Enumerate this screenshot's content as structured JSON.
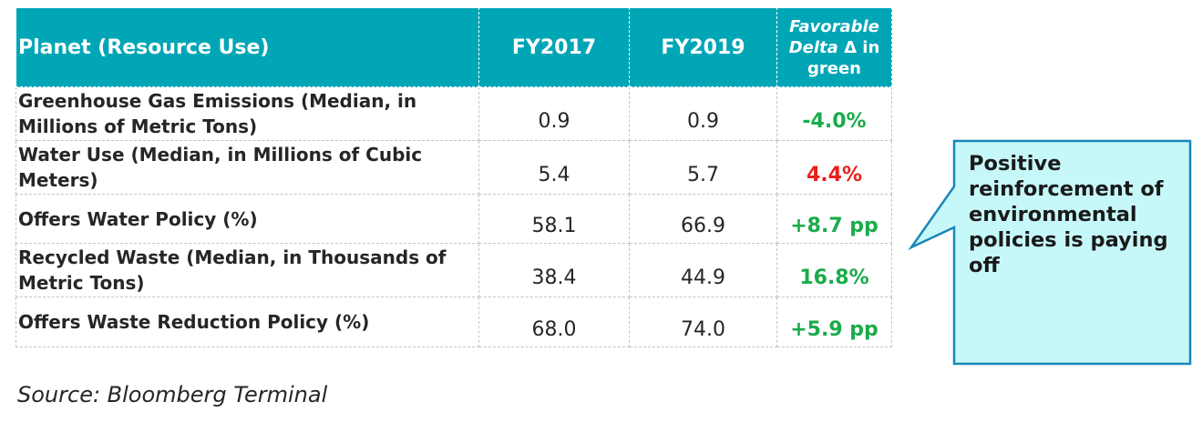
{
  "table": {
    "headers": {
      "metric": "Planet (Resource Use)",
      "fy2017": "FY2017",
      "fy2019": "FY2019",
      "delta_l1": "Favorable",
      "delta_l2a": "Delta",
      "delta_l2b": " Δ in",
      "delta_l3": "green"
    },
    "rows": [
      {
        "metric": "Greenhouse Gas Emissions (Median, in Millions of Metric Tons)",
        "fy2017": "0.9",
        "fy2019": "0.9",
        "delta": "-4.0%",
        "favorable": true
      },
      {
        "metric": "Water Use (Median, in Millions of Cubic Meters)",
        "fy2017": "5.4",
        "fy2019": "5.7",
        "delta": "4.4%",
        "favorable": false
      },
      {
        "metric": "Offers Water Policy (%)",
        "fy2017": "58.1",
        "fy2019": "66.9",
        "delta": "+8.7 pp",
        "favorable": true
      },
      {
        "metric": "Recycled Waste (Median, in Thousands of Metric Tons)",
        "fy2017": "38.4",
        "fy2019": "44.9",
        "delta": "16.8%",
        "favorable": true
      },
      {
        "metric": "Offers Waste Reduction Policy (%)",
        "fy2017": "68.0",
        "fy2019": "74.0",
        "delta": "+5.9 pp",
        "favorable": true
      }
    ]
  },
  "callout": {
    "text": "Positive reinforcement of environmental policies is paying off"
  },
  "source": "Source: Bloomberg Terminal",
  "colors": {
    "header_bg": "#00a6b6",
    "favorable": "#1aab4b",
    "unfavorable": "#e8201c",
    "callout_bg": "#c6f8fa",
    "callout_border": "#1a86b8"
  }
}
